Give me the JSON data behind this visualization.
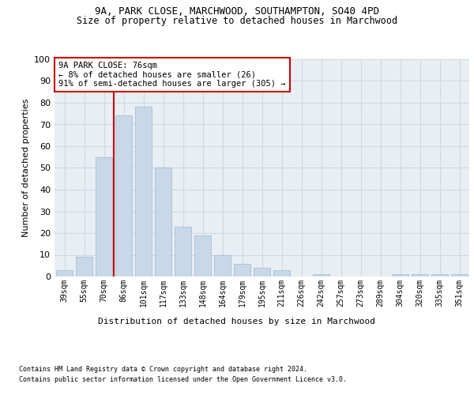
{
  "title1": "9A, PARK CLOSE, MARCHWOOD, SOUTHAMPTON, SO40 4PD",
  "title2": "Size of property relative to detached houses in Marchwood",
  "xlabel": "Distribution of detached houses by size in Marchwood",
  "ylabel": "Number of detached properties",
  "categories": [
    "39sqm",
    "55sqm",
    "70sqm",
    "86sqm",
    "101sqm",
    "117sqm",
    "133sqm",
    "148sqm",
    "164sqm",
    "179sqm",
    "195sqm",
    "211sqm",
    "226sqm",
    "242sqm",
    "257sqm",
    "273sqm",
    "289sqm",
    "304sqm",
    "320sqm",
    "335sqm",
    "351sqm"
  ],
  "values": [
    3,
    9,
    55,
    74,
    78,
    50,
    23,
    19,
    10,
    6,
    4,
    3,
    0,
    1,
    0,
    0,
    0,
    1,
    1,
    1,
    1
  ],
  "bar_color": "#c8d8e8",
  "bar_edgecolor": "#a0b8cc",
  "vline_x": 2.5,
  "vline_color": "#cc0000",
  "annotation_text": "9A PARK CLOSE: 76sqm\n← 8% of detached houses are smaller (26)\n91% of semi-detached houses are larger (305) →",
  "annotation_box_edgecolor": "#cc0000",
  "annotation_box_facecolor": "#ffffff",
  "ylim": [
    0,
    100
  ],
  "yticks": [
    0,
    10,
    20,
    30,
    40,
    50,
    60,
    70,
    80,
    90,
    100
  ],
  "grid_color": "#d0d8e0",
  "plot_bg_color": "#e8eef4",
  "footnote1": "Contains HM Land Registry data © Crown copyright and database right 2024.",
  "footnote2": "Contains public sector information licensed under the Open Government Licence v3.0."
}
